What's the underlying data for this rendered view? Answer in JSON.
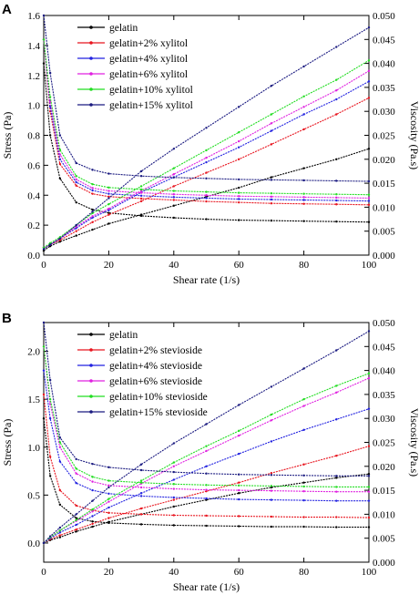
{
  "chart_data": [
    {
      "panel_label": "A",
      "type": "line",
      "xlabel": "Shear rate (1/s)",
      "ylabel_left": "Stress (Pa)",
      "ylabel_right": "Viscosity (Pa.s)",
      "xlim": [
        0,
        100
      ],
      "ylim_left": [
        0.0,
        1.6
      ],
      "ylim_right": [
        0.0,
        0.05
      ],
      "x_ticks": [
        "0",
        "20",
        "40",
        "60",
        "80",
        "100"
      ],
      "y_ticks_left": [
        "0.0",
        "0.2",
        "0.4",
        "0.6",
        "0.8",
        "1.0",
        "1.2",
        "1.4",
        "1.6"
      ],
      "y_ticks_right": [
        "0.000",
        "0.005",
        "0.010",
        "0.015",
        "0.020",
        "0.025",
        "0.030",
        "0.035",
        "0.040",
        "0.045",
        "0.050"
      ],
      "legend_position": "top-left",
      "x": [
        0,
        2,
        5,
        10,
        15,
        20,
        30,
        40,
        50,
        60,
        70,
        80,
        90,
        100
      ],
      "series": [
        {
          "name": "gelatin",
          "color": "#000000",
          "stress": [
            0.03,
            0.06,
            0.09,
            0.13,
            0.17,
            0.21,
            0.27,
            0.33,
            0.39,
            0.45,
            0.52,
            0.58,
            0.64,
            0.71
          ],
          "viscosity": [
            0.04,
            0.025,
            0.016,
            0.011,
            0.0095,
            0.0088,
            0.0082,
            0.0078,
            0.0075,
            0.0073,
            0.0072,
            0.0071,
            0.007,
            0.0069
          ]
        },
        {
          "name": "gelatin+2% xylitol",
          "color": "#e8141e",
          "stress": [
            0.05,
            0.07,
            0.1,
            0.16,
            0.22,
            0.27,
            0.36,
            0.46,
            0.55,
            0.64,
            0.74,
            0.84,
            0.94,
            1.05
          ],
          "viscosity": [
            0.045,
            0.03,
            0.019,
            0.0145,
            0.0128,
            0.0122,
            0.0118,
            0.0115,
            0.0112,
            0.011,
            0.0108,
            0.0107,
            0.0106,
            0.0105
          ]
        },
        {
          "name": "gelatin+4% xylitol",
          "color": "#2222e0",
          "stress": [
            0.05,
            0.07,
            0.11,
            0.18,
            0.25,
            0.3,
            0.42,
            0.52,
            0.62,
            0.72,
            0.83,
            0.94,
            1.04,
            1.16
          ],
          "viscosity": [
            0.045,
            0.031,
            0.02,
            0.0152,
            0.0135,
            0.0128,
            0.0124,
            0.0121,
            0.0119,
            0.0117,
            0.0116,
            0.0115,
            0.0114,
            0.0113
          ]
        },
        {
          "name": "gelatin+6% xylitol",
          "color": "#e020e0",
          "stress": [
            0.05,
            0.07,
            0.11,
            0.19,
            0.26,
            0.31,
            0.43,
            0.54,
            0.65,
            0.76,
            0.88,
            0.99,
            1.1,
            1.23
          ],
          "viscosity": [
            0.045,
            0.032,
            0.021,
            0.0158,
            0.014,
            0.0134,
            0.013,
            0.0127,
            0.0125,
            0.0123,
            0.0122,
            0.0121,
            0.012,
            0.0119
          ]
        },
        {
          "name": "gelatin+10% xylitol",
          "color": "#22dd22",
          "stress": [
            0.05,
            0.08,
            0.12,
            0.2,
            0.28,
            0.34,
            0.46,
            0.58,
            0.7,
            0.82,
            0.94,
            1.06,
            1.17,
            1.3
          ],
          "viscosity": [
            0.045,
            0.033,
            0.022,
            0.0165,
            0.0148,
            0.0141,
            0.0137,
            0.0134,
            0.0132,
            0.013,
            0.0129,
            0.0128,
            0.0127,
            0.0126
          ]
        },
        {
          "name": "gelatin+15% xylitol",
          "color": "#1a1a80",
          "stress": [
            0.04,
            0.07,
            0.11,
            0.2,
            0.29,
            0.38,
            0.56,
            0.71,
            0.85,
            0.99,
            1.13,
            1.26,
            1.39,
            1.52
          ],
          "viscosity": [
            0.05,
            0.038,
            0.025,
            0.0192,
            0.0178,
            0.017,
            0.0165,
            0.0162,
            0.016,
            0.0158,
            0.0157,
            0.0156,
            0.0155,
            0.0154
          ]
        }
      ]
    },
    {
      "panel_label": "B",
      "type": "line",
      "xlabel": "Shear rate (1/s)",
      "ylabel_left": "Stress (Pa)",
      "ylabel_right": "Viscosity (Pa.s)",
      "xlim": [
        0,
        100
      ],
      "ylim_left": [
        -0.2,
        2.3
      ],
      "ylim_right": [
        0.0,
        0.05
      ],
      "x_ticks": [
        "0",
        "20",
        "40",
        "60",
        "80",
        "100"
      ],
      "y_ticks_left": [
        "0.0",
        "0.5",
        "1.0",
        "1.5",
        "2.0"
      ],
      "y_ticks_right": [
        "0.000",
        "0.005",
        "0.010",
        "0.015",
        "0.020",
        "0.025",
        "0.030",
        "0.035",
        "0.040",
        "0.045",
        "0.050"
      ],
      "legend_position": "top-left",
      "x": [
        0,
        2,
        5,
        10,
        15,
        20,
        30,
        40,
        50,
        60,
        70,
        80,
        90,
        100
      ],
      "series": [
        {
          "name": "gelatin",
          "color": "#000000",
          "stress": [
            0.0,
            0.03,
            0.06,
            0.12,
            0.17,
            0.22,
            0.3,
            0.38,
            0.45,
            0.52,
            0.58,
            0.63,
            0.68,
            0.72
          ],
          "viscosity": [
            0.03,
            0.018,
            0.012,
            0.0092,
            0.0085,
            0.0082,
            0.0079,
            0.0077,
            0.0076,
            0.0075,
            0.0074,
            0.0074,
            0.0073,
            0.0073
          ]
        },
        {
          "name": "gelatin+2% stevioside",
          "color": "#e8141e",
          "stress": [
            0.0,
            0.04,
            0.08,
            0.14,
            0.2,
            0.26,
            0.36,
            0.45,
            0.54,
            0.63,
            0.73,
            0.82,
            0.91,
            1.01
          ],
          "viscosity": [
            0.035,
            0.022,
            0.015,
            0.0118,
            0.0108,
            0.0103,
            0.01,
            0.0098,
            0.0097,
            0.0096,
            0.0095,
            0.0094,
            0.0094,
            0.0093
          ]
        },
        {
          "name": "gelatin+4% stevioside",
          "color": "#2222e0",
          "stress": [
            0.0,
            0.05,
            0.11,
            0.19,
            0.28,
            0.37,
            0.52,
            0.66,
            0.8,
            0.93,
            1.06,
            1.18,
            1.29,
            1.4
          ],
          "viscosity": [
            0.04,
            0.03,
            0.021,
            0.0165,
            0.015,
            0.0143,
            0.0138,
            0.0135,
            0.0133,
            0.0131,
            0.013,
            0.0129,
            0.0128,
            0.0128
          ]
        },
        {
          "name": "gelatin+6% stevioside",
          "color": "#e020e0",
          "stress": [
            0.0,
            0.06,
            0.13,
            0.23,
            0.33,
            0.43,
            0.62,
            0.8,
            0.96,
            1.12,
            1.28,
            1.43,
            1.57,
            1.72
          ],
          "viscosity": [
            0.045,
            0.033,
            0.024,
            0.0185,
            0.0168,
            0.016,
            0.0156,
            0.0153,
            0.0151,
            0.015,
            0.0149,
            0.0148,
            0.0147,
            0.0147
          ]
        },
        {
          "name": "gelatin+10% stevioside",
          "color": "#22dd22",
          "stress": [
            0.0,
            0.06,
            0.13,
            0.24,
            0.35,
            0.46,
            0.65,
            0.84,
            1.01,
            1.17,
            1.34,
            1.5,
            1.64,
            1.77
          ],
          "viscosity": [
            0.045,
            0.034,
            0.025,
            0.0195,
            0.0178,
            0.017,
            0.0166,
            0.0163,
            0.0161,
            0.016,
            0.0159,
            0.0158,
            0.0157,
            0.0157
          ]
        },
        {
          "name": "gelatin+15% stevioside",
          "color": "#1a1a80",
          "stress": [
            0.0,
            0.07,
            0.16,
            0.3,
            0.44,
            0.58,
            0.82,
            1.04,
            1.24,
            1.44,
            1.63,
            1.82,
            2.01,
            2.21
          ],
          "viscosity": [
            0.05,
            0.038,
            0.026,
            0.0215,
            0.0205,
            0.0198,
            0.0192,
            0.0188,
            0.0185,
            0.0183,
            0.0182,
            0.0181,
            0.018,
            0.018
          ]
        }
      ]
    }
  ]
}
